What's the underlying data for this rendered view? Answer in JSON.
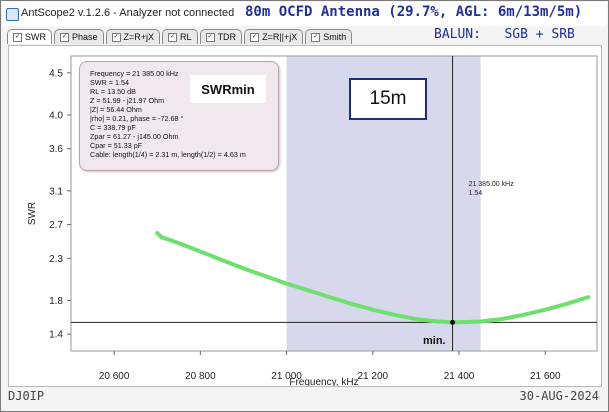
{
  "window": {
    "app_title": "AntScope2 v.1.2.6 - Analyzer not connected"
  },
  "overlay": {
    "title": "80m OCFD Antenna (29.7%, AGL: 6m/13m/5m)",
    "balun": "BALUN:   SGB + SRB",
    "swrmin_label": "SWRmin",
    "band_label": "15m",
    "min_label": "min.",
    "author": "DJ0IP",
    "date": "30-AUG-2024"
  },
  "tabs": [
    {
      "label": "SWR",
      "active": true
    },
    {
      "label": "Phase",
      "active": false
    },
    {
      "label": "Z=R+jX",
      "active": false
    },
    {
      "label": "RL",
      "active": false
    },
    {
      "label": "TDR",
      "active": false
    },
    {
      "label": "Z=R||+jX",
      "active": false
    },
    {
      "label": "Smith",
      "active": false
    }
  ],
  "info_box": {
    "lines": [
      "Frequency = 21 385.00 kHz",
      "SWR = 1.54",
      "RL = 13.50 dB",
      "Z = 51.99 - j21.97 Ohm",
      "|Z| = 56.44 Ohm",
      "|rho| = 0.21, phase = -72.68 °",
      "C = 338.79 pF",
      "Zpar = 61.27 - j145.00 Ohm",
      "Cpar = 51.33 pF",
      "Cable: length(1/4) = 2.31 m, length(1/2) = 4.63 m"
    ]
  },
  "marker": {
    "freq_label": "21 385.00 kHz",
    "swr_label": "1.54"
  },
  "chart_data": {
    "type": "line",
    "xlabel": "Frequency, kHz",
    "ylabel": "SWR",
    "xlim": [
      20500,
      21720
    ],
    "ylim": [
      1.2,
      4.7
    ],
    "x_ticks": [
      20600,
      20800,
      21000,
      21200,
      21400,
      21600
    ],
    "x_tick_labels": [
      "20 600",
      "20 800",
      "21 000",
      "21 200",
      "21 400",
      "21 600"
    ],
    "y_ticks": [
      1.4,
      1.8,
      2.3,
      2.7,
      3.1,
      3.6,
      4.0,
      4.5
    ],
    "y_tick_labels": [
      "1.4",
      "1.8",
      "2.3",
      "2.7",
      "3.1",
      "3.6",
      "4.0",
      "4.5"
    ],
    "band_highlight": [
      21000,
      21450
    ],
    "band_color": "#d8d8ec",
    "marker_x": 21385,
    "marker_y": 1.54,
    "hline_y": 1.54,
    "series": [
      {
        "color": "#6ee06e",
        "x": [
          20700,
          20710,
          20750,
          20800,
          20850,
          20900,
          20950,
          21000,
          21050,
          21100,
          21150,
          21200,
          21250,
          21300,
          21350,
          21385,
          21400,
          21450,
          21500,
          21550,
          21600,
          21650,
          21700
        ],
        "y": [
          2.6,
          2.55,
          2.48,
          2.38,
          2.28,
          2.18,
          2.09,
          2.0,
          1.92,
          1.84,
          1.76,
          1.69,
          1.63,
          1.58,
          1.55,
          1.54,
          1.54,
          1.55,
          1.58,
          1.63,
          1.69,
          1.76,
          1.84
        ]
      }
    ]
  }
}
